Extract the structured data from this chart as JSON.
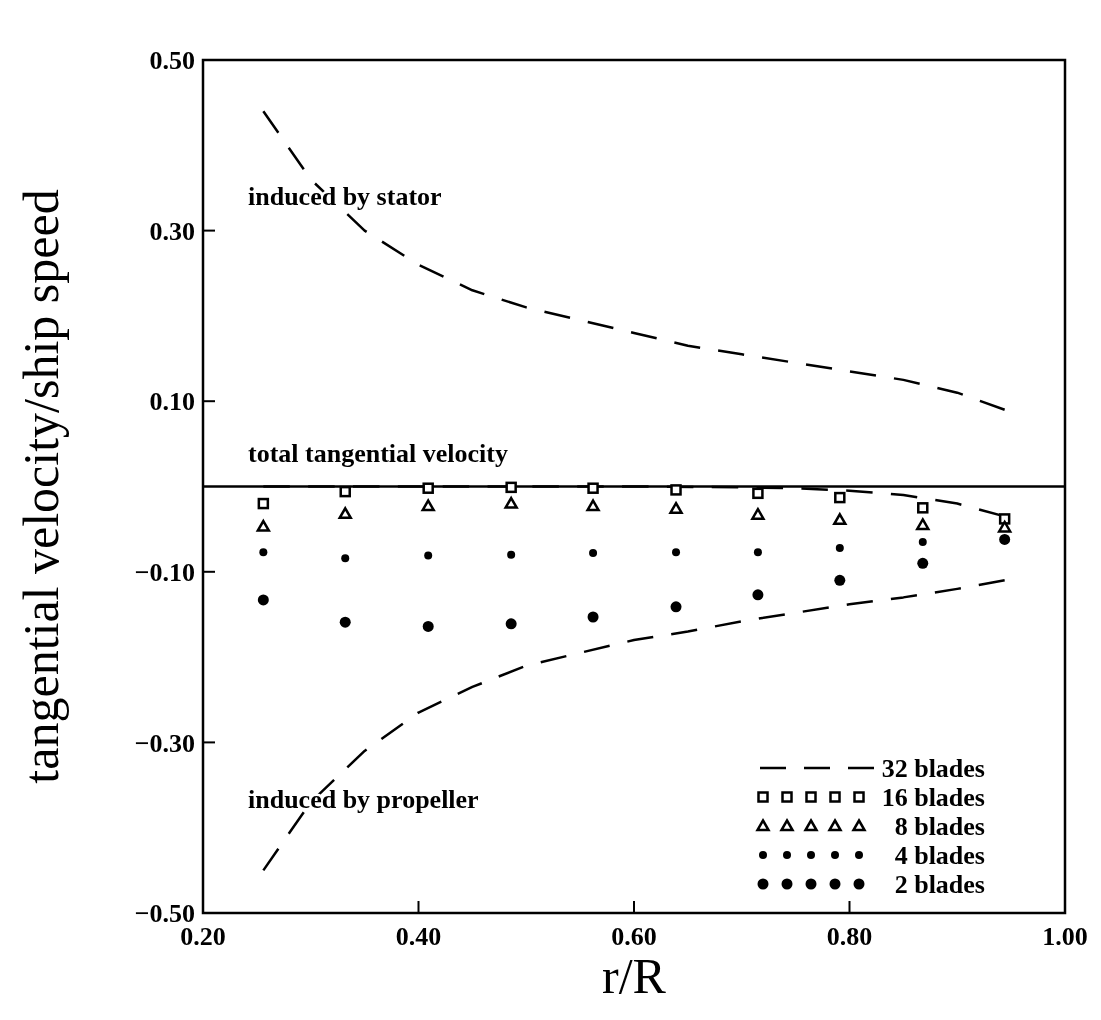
{
  "chart_data": {
    "type": "line",
    "xlabel": "r/R",
    "ylabel": "tangential velocity/ship speed",
    "xlim": [
      0.2,
      1.0
    ],
    "ylim": [
      -0.5,
      0.5
    ],
    "xticks": [
      {
        "value": 0.2,
        "label": "0.20"
      },
      {
        "value": 0.4,
        "label": "0.40"
      },
      {
        "value": 0.6,
        "label": "0.60"
      },
      {
        "value": 0.8,
        "label": "0.80"
      },
      {
        "value": 1.0,
        "label": "1.00"
      }
    ],
    "yticks": [
      {
        "value": -0.5,
        "label": "−0.50"
      },
      {
        "value": -0.3,
        "label": "−0.30"
      },
      {
        "value": -0.1,
        "label": "−0.10"
      },
      {
        "value": 0.1,
        "label": "0.10"
      },
      {
        "value": 0.3,
        "label": "0.30"
      },
      {
        "value": 0.5,
        "label": "0.50"
      }
    ],
    "grid": false,
    "legend": "bottom right",
    "ref_lines": [
      {
        "axis": "y",
        "value": 0,
        "color": "#000000",
        "line_style": "solid"
      }
    ],
    "annotations": [
      "induced by stator",
      "total tangential velocity",
      "induced by propeller"
    ],
    "series": [
      {
        "name": "32 blades",
        "color": "#000000",
        "line_style": "dashed",
        "x": [
          0.256,
          0.3,
          0.35,
          0.4,
          0.45,
          0.5,
          0.55,
          0.6,
          0.65,
          0.7,
          0.75,
          0.8,
          0.85,
          0.9,
          0.944
        ],
        "values": [
          0.44,
          0.36,
          0.3,
          0.26,
          0.23,
          0.21,
          0.195,
          0.18,
          0.165,
          0.155,
          0.145,
          0.135,
          0.125,
          0.11,
          0.09
        ]
      },
      {
        "color": "#000000",
        "line_style": "dashed",
        "x": [
          0.256,
          0.3,
          0.35,
          0.4,
          0.45,
          0.5,
          0.55,
          0.6,
          0.65,
          0.7,
          0.75,
          0.8,
          0.85,
          0.9,
          0.944
        ],
        "values": [
          -0.45,
          -0.37,
          -0.31,
          -0.265,
          -0.235,
          -0.21,
          -0.195,
          -0.18,
          -0.17,
          -0.158,
          -0.148,
          -0.138,
          -0.13,
          -0.12,
          -0.11
        ]
      },
      {
        "color": "#000000",
        "line_style": "dashed",
        "x": [
          0.256,
          0.4,
          0.5,
          0.6,
          0.7,
          0.75,
          0.8,
          0.85,
          0.9,
          0.944
        ],
        "values": [
          0,
          0,
          0,
          0,
          -0.001,
          -0.002,
          -0.005,
          -0.01,
          -0.02,
          -0.035
        ]
      },
      {
        "name": "16 blades",
        "type": "scatter",
        "color": "#000000",
        "marker": "square",
        "x": [
          0.256,
          0.332,
          0.409,
          0.486,
          0.562,
          0.639,
          0.715,
          0.791,
          0.868,
          0.944
        ],
        "values": [
          -0.02,
          -0.006,
          -0.002,
          -0.001,
          -0.002,
          -0.004,
          -0.008,
          -0.013,
          -0.025,
          -0.038
        ]
      },
      {
        "name": "8 blades",
        "type": "scatter",
        "color": "#000000",
        "marker": "triangle",
        "x": [
          0.256,
          0.332,
          0.409,
          0.486,
          0.562,
          0.639,
          0.715,
          0.791,
          0.868,
          0.944
        ],
        "values": [
          -0.047,
          -0.032,
          -0.023,
          -0.02,
          -0.023,
          -0.026,
          -0.033,
          -0.039,
          -0.045,
          -0.048
        ]
      },
      {
        "name": "4 blades",
        "type": "scatter",
        "color": "#000000",
        "marker": "circle",
        "x": [
          0.256,
          0.332,
          0.409,
          0.486,
          0.562,
          0.639,
          0.715,
          0.791,
          0.868
        ],
        "values": [
          -0.077,
          -0.084,
          -0.081,
          -0.08,
          -0.078,
          -0.077,
          -0.077,
          -0.072,
          -0.065
        ]
      },
      {
        "name": "2 blades",
        "type": "scatter",
        "color": "#000000",
        "marker": "circle",
        "x": [
          0.256,
          0.332,
          0.409,
          0.486,
          0.562,
          0.639,
          0.715,
          0.791,
          0.868,
          0.944
        ],
        "values": [
          -0.133,
          -0.159,
          -0.164,
          -0.161,
          -0.153,
          -0.141,
          -0.127,
          -0.11,
          -0.09,
          -0.062
        ]
      }
    ]
  }
}
